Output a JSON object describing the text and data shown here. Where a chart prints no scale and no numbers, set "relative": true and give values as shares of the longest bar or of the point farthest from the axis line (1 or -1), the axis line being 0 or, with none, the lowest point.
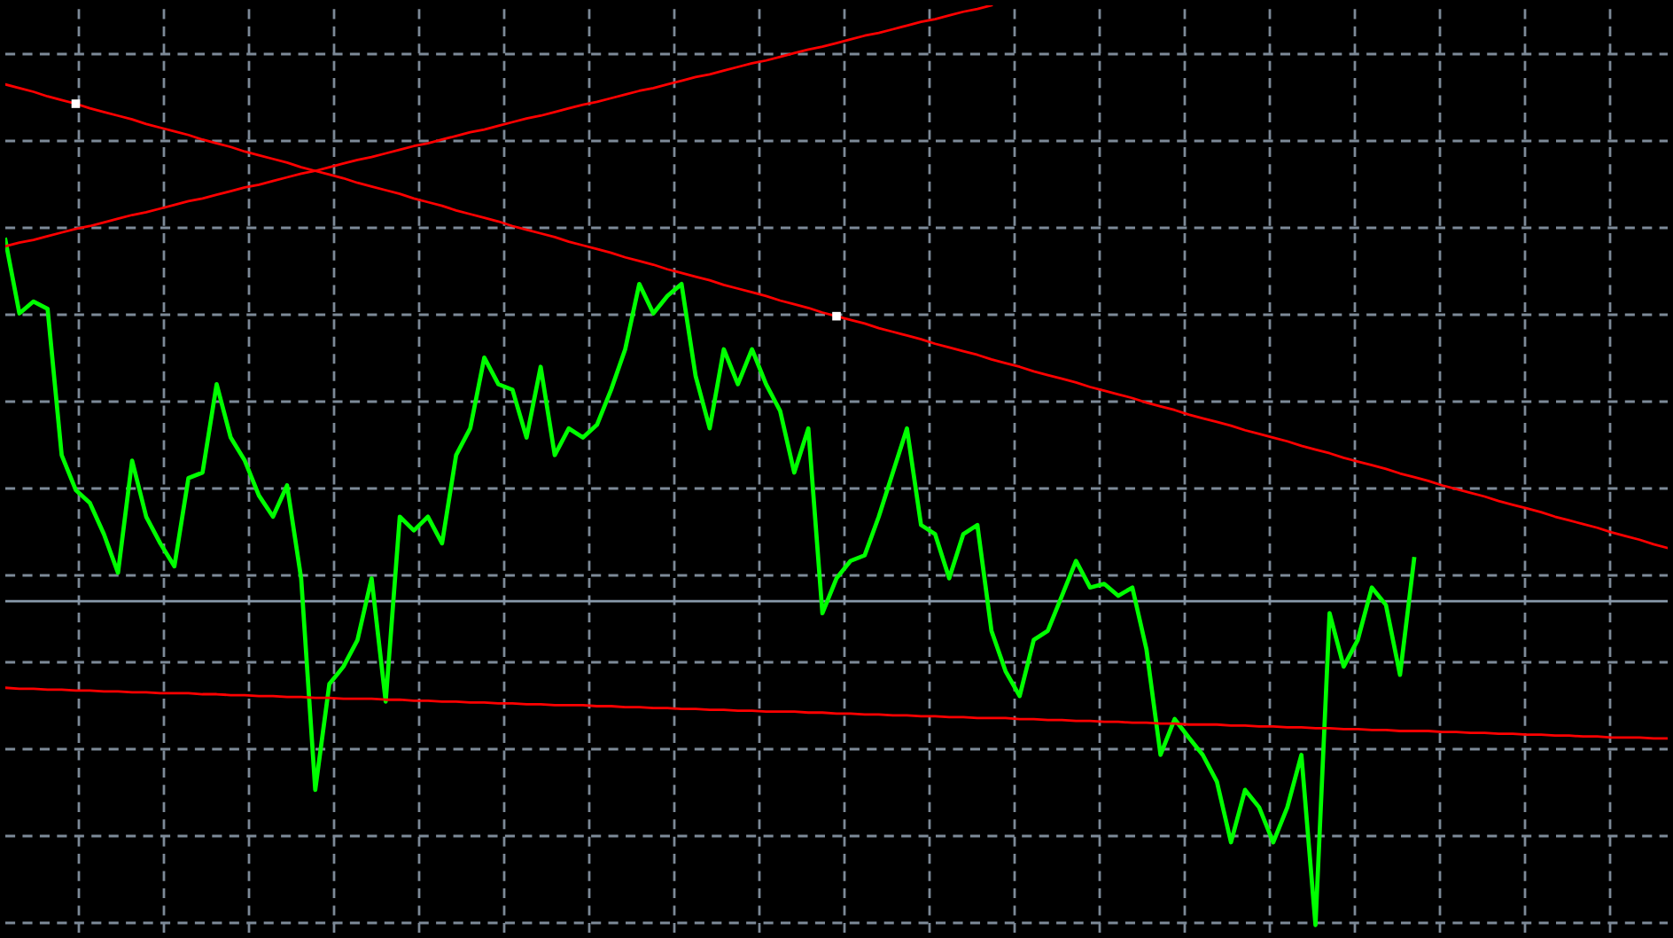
{
  "chart_data": {
    "type": "line",
    "relative": true,
    "grid": true,
    "marker": "none",
    "line_style": "solid",
    "categories": [
      null,
      null,
      null,
      null,
      null,
      null,
      null,
      null,
      null,
      null,
      null,
      null,
      null,
      null,
      null,
      null,
      null,
      null,
      null,
      null,
      null,
      null,
      null,
      null,
      null,
      null,
      null,
      null,
      null,
      null,
      null,
      null,
      null,
      null,
      null,
      null,
      null,
      null,
      null,
      null,
      null,
      null,
      null,
      null,
      null,
      null,
      null,
      null,
      null,
      null,
      null,
      null,
      null,
      null,
      null,
      null,
      null,
      null,
      null,
      null,
      null,
      null,
      null,
      null,
      null,
      null,
      null,
      null,
      null,
      null,
      null,
      null,
      null,
      null,
      null,
      null,
      null,
      null,
      null,
      null,
      null,
      null,
      null,
      null,
      null,
      null,
      null,
      null,
      null,
      null,
      null,
      null,
      null,
      null,
      null,
      null,
      null,
      null,
      null,
      null,
      null,
      null,
      null,
      null,
      null,
      null,
      null,
      null,
      null,
      null,
      null,
      null,
      null,
      null,
      null,
      null,
      null,
      null,
      null
    ],
    "ref_lines": [
      {
        "axis": "y",
        "value": 0.352,
        "color": "#8899aa"
      }
    ],
    "series": [
      {
        "color": "#00ff00",
        "values": [
          0.745,
          0.665,
          0.678,
          0.67,
          0.511,
          0.473,
          0.459,
          0.425,
          0.383,
          0.505,
          0.444,
          0.415,
          0.39,
          0.486,
          0.492,
          0.588,
          0.53,
          0.505,
          0.467,
          0.444,
          0.478,
          0.377,
          0.147,
          0.262,
          0.281,
          0.31,
          0.377,
          0.243,
          0.444,
          0.429,
          0.444,
          0.415,
          0.511,
          0.54,
          0.617,
          0.588,
          0.582,
          0.53,
          0.607,
          0.511,
          0.54,
          0.53,
          0.544,
          0.582,
          0.626,
          0.697,
          0.665,
          0.684,
          0.697,
          0.597,
          0.54,
          0.626,
          0.588,
          0.626,
          0.588,
          0.559,
          0.492,
          0.54,
          0.339,
          0.377,
          0.396,
          0.402,
          0.444,
          0.492,
          0.54,
          0.435,
          0.425,
          0.377,
          0.425,
          0.435,
          0.32,
          0.276,
          0.249,
          0.31,
          0.32,
          0.358,
          0.396,
          0.367,
          0.371,
          0.358,
          0.367,
          0.3,
          0.185,
          0.224,
          0.204,
          0.185,
          0.156,
          0.09,
          0.147,
          0.128,
          0.09,
          0.128,
          0.185,
          0.0,
          0.339,
          0.281,
          0.31,
          0.367,
          0.348,
          0.272,
          0.398,
          null,
          null,
          null,
          null,
          null,
          null,
          null,
          null,
          null,
          null,
          null,
          null,
          null,
          null,
          null,
          null,
          null,
          null
        ]
      },
      {
        "type": "line",
        "color": "#ff0000",
        "values": [
          0.914,
          0.91,
          0.906,
          0.901,
          0.897,
          0.893,
          0.888,
          0.884,
          0.88,
          0.876,
          0.871,
          0.867,
          0.863,
          0.859,
          0.854,
          0.85,
          0.846,
          0.841,
          0.837,
          0.833,
          0.829,
          0.824,
          0.82,
          0.816,
          0.812,
          0.807,
          0.803,
          0.799,
          0.795,
          0.79,
          0.786,
          0.782,
          0.777,
          0.773,
          0.769,
          0.765,
          0.76,
          0.756,
          0.752,
          0.748,
          0.743,
          0.739,
          0.735,
          0.731,
          0.726,
          0.722,
          0.718,
          0.713,
          0.709,
          0.705,
          0.701,
          0.696,
          0.692,
          0.688,
          0.684,
          0.679,
          0.675,
          0.671,
          0.666,
          0.662,
          0.658,
          0.654,
          0.649,
          0.645,
          0.641,
          0.637,
          0.632,
          0.628,
          0.624,
          0.62,
          0.615,
          0.611,
          0.607,
          0.602,
          0.598,
          0.594,
          0.59,
          0.585,
          0.581,
          0.577,
          0.573,
          0.568,
          0.564,
          0.56,
          0.555,
          0.551,
          0.547,
          0.543,
          0.538,
          0.534,
          0.53,
          0.526,
          0.521,
          0.517,
          0.513,
          0.508,
          0.504,
          0.5,
          0.496,
          0.491,
          0.487,
          0.483,
          0.478,
          0.474,
          0.47,
          0.466,
          0.461,
          0.457,
          0.453,
          0.449,
          0.444,
          0.44,
          0.436,
          0.432,
          0.427,
          0.423,
          0.419,
          0.414,
          0.41
        ]
      },
      {
        "type": "line",
        "color": "#ff0000",
        "values": [
          0.738,
          0.742,
          0.745,
          0.749,
          0.753,
          0.757,
          0.76,
          0.764,
          0.768,
          0.772,
          0.775,
          0.779,
          0.783,
          0.787,
          0.79,
          0.794,
          0.798,
          0.802,
          0.805,
          0.809,
          0.813,
          0.817,
          0.82,
          0.824,
          0.828,
          0.832,
          0.835,
          0.839,
          0.843,
          0.847,
          0.85,
          0.854,
          0.858,
          0.862,
          0.865,
          0.869,
          0.873,
          0.877,
          0.88,
          0.884,
          0.888,
          0.892,
          0.895,
          0.899,
          0.903,
          0.907,
          0.91,
          0.914,
          0.918,
          0.922,
          0.925,
          0.929,
          0.933,
          0.937,
          0.94,
          0.944,
          0.948,
          0.952,
          0.955,
          0.959,
          0.963,
          0.967,
          0.97,
          0.974,
          0.978,
          0.982,
          0.985,
          0.989,
          0.993,
          0.996,
          1.0,
          null,
          null,
          null,
          null,
          null,
          null,
          null,
          null,
          null,
          null,
          null,
          null,
          null,
          null,
          null,
          null,
          null,
          null,
          null,
          null,
          null,
          null,
          null,
          null,
          null,
          null,
          null,
          null,
          null,
          null,
          null,
          null,
          null,
          null,
          null,
          null,
          null,
          null,
          null,
          null,
          null,
          null,
          null,
          null,
          null,
          null,
          null,
          null
        ]
      },
      {
        "type": "line",
        "color": "#ff0000",
        "values": [
          0.258,
          0.257,
          0.257,
          0.256,
          0.256,
          0.255,
          0.255,
          0.254,
          0.254,
          0.253,
          0.253,
          0.252,
          0.252,
          0.252,
          0.251,
          0.251,
          0.25,
          0.25,
          0.249,
          0.249,
          0.248,
          0.248,
          0.247,
          0.247,
          0.246,
          0.246,
          0.246,
          0.245,
          0.245,
          0.244,
          0.244,
          0.243,
          0.243,
          0.242,
          0.242,
          0.241,
          0.241,
          0.24,
          0.24,
          0.239,
          0.239,
          0.239,
          0.238,
          0.238,
          0.237,
          0.237,
          0.236,
          0.236,
          0.235,
          0.235,
          0.234,
          0.234,
          0.233,
          0.233,
          0.232,
          0.232,
          0.232,
          0.231,
          0.231,
          0.23,
          0.23,
          0.229,
          0.229,
          0.228,
          0.228,
          0.227,
          0.227,
          0.226,
          0.226,
          0.225,
          0.225,
          0.225,
          0.224,
          0.224,
          0.223,
          0.223,
          0.222,
          0.222,
          0.221,
          0.221,
          0.22,
          0.22,
          0.219,
          0.219,
          0.218,
          0.218,
          0.218,
          0.217,
          0.217,
          0.216,
          0.216,
          0.215,
          0.215,
          0.214,
          0.214,
          0.213,
          0.213,
          0.212,
          0.212,
          0.211,
          0.211,
          0.211,
          0.21,
          0.21,
          0.209,
          0.209,
          0.208,
          0.208,
          0.207,
          0.207,
          0.206,
          0.206,
          0.205,
          0.205,
          0.204,
          0.204,
          0.204,
          0.203,
          0.203
        ]
      }
    ]
  }
}
